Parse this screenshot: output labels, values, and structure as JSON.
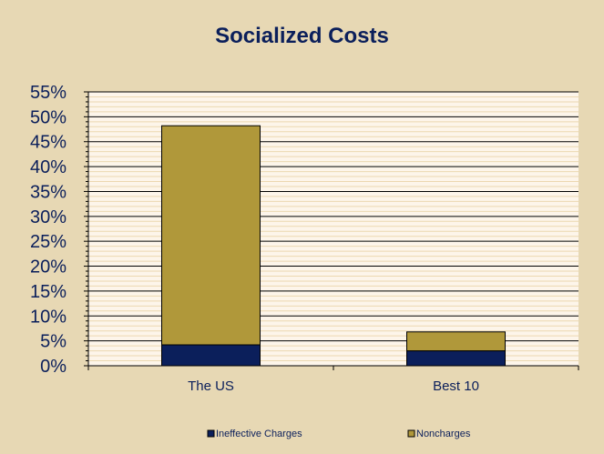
{
  "chart_data": {
    "type": "bar",
    "stacked": true,
    "title": "Socialized Costs",
    "xlabel": "",
    "ylabel": "",
    "categories": [
      "The US",
      "Best 10"
    ],
    "series": [
      {
        "name": "Ineffective Charges",
        "values": [
          4.2,
          3.0
        ],
        "color": "#0b1f5b"
      },
      {
        "name": "Noncharges",
        "values": [
          44.0,
          3.8
        ],
        "color": "#b0983a"
      }
    ],
    "ylim": [
      0,
      55
    ],
    "yticks": [
      "0%",
      "5%",
      "10%",
      "15%",
      "20%",
      "25%",
      "30%",
      "35%",
      "40%",
      "45%",
      "50%",
      "55%"
    ],
    "grid": true,
    "legend": "bottom",
    "colors": {
      "background": "#e7d8b4",
      "plot_area": "#fdf5ea",
      "gridline": "#000000",
      "text": "#0b1f5b"
    }
  }
}
